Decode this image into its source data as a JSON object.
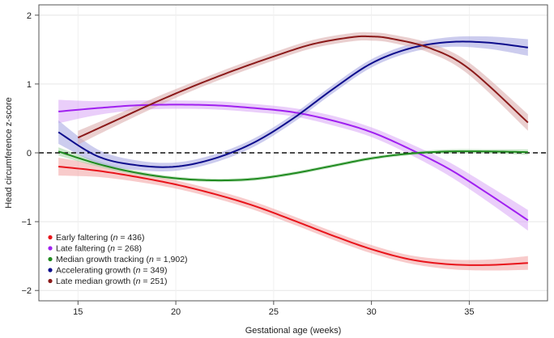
{
  "chart_data": {
    "type": "line",
    "xlabel": "Gestational age (weeks)",
    "ylabel": "Head circumference z-score",
    "xlim": [
      13,
      39
    ],
    "ylim": [
      -2.15,
      2.15
    ],
    "xticks": [
      15,
      20,
      25,
      30,
      35
    ],
    "yticks": [
      -2,
      -1,
      0,
      1,
      2
    ],
    "grid": true,
    "reference_line": {
      "y": 0,
      "style": "dashed"
    },
    "legend_position": "bottom-left",
    "series": [
      {
        "name": "Early faltering (n = 436)",
        "legend_prefix": "Early faltering (",
        "legend_n": "n",
        "legend_suffix": " = 436)",
        "color": "#e8141b",
        "band_color": "#f2a0a0",
        "x": [
          14,
          16,
          18,
          20,
          22,
          24,
          26,
          28,
          30,
          32,
          34,
          36,
          38
        ],
        "y": [
          -0.2,
          -0.26,
          -0.35,
          -0.46,
          -0.6,
          -0.77,
          -0.98,
          -1.2,
          -1.4,
          -1.55,
          -1.62,
          -1.63,
          -1.6
        ],
        "ci": [
          0.13,
          0.09,
          0.07,
          0.06,
          0.06,
          0.06,
          0.06,
          0.06,
          0.06,
          0.06,
          0.07,
          0.08,
          0.1
        ]
      },
      {
        "name": "Late faltering (n = 268)",
        "legend_prefix": "Late faltering (",
        "legend_n": "n",
        "legend_suffix": " = 268)",
        "color": "#a020f0",
        "band_color": "#d9a6f5",
        "x": [
          14,
          16,
          18,
          20,
          22,
          24,
          26,
          28,
          30,
          32,
          34,
          36,
          38
        ],
        "y": [
          0.6,
          0.65,
          0.69,
          0.7,
          0.69,
          0.65,
          0.59,
          0.47,
          0.3,
          0.05,
          -0.24,
          -0.6,
          -0.98
        ],
        "ci": [
          0.17,
          0.1,
          0.07,
          0.06,
          0.06,
          0.06,
          0.06,
          0.07,
          0.07,
          0.08,
          0.1,
          0.12,
          0.15
        ]
      },
      {
        "name": "Median growth tracking (n = 1,902)",
        "legend_prefix": "Median growth tracking (",
        "legend_n": "n",
        "legend_suffix": " = 1,902)",
        "color": "#1f8a1f",
        "band_color": "#9fd39f",
        "x": [
          14,
          16,
          18,
          20,
          22,
          24,
          26,
          28,
          30,
          32,
          34,
          36,
          38
        ],
        "y": [
          0.02,
          -0.16,
          -0.29,
          -0.37,
          -0.4,
          -0.38,
          -0.3,
          -0.19,
          -0.08,
          -0.01,
          0.02,
          0.02,
          0.01
        ],
        "ci": [
          0.06,
          0.04,
          0.03,
          0.025,
          0.025,
          0.025,
          0.025,
          0.025,
          0.025,
          0.025,
          0.03,
          0.03,
          0.04
        ]
      },
      {
        "name": "Accelerating growth (n = 349)",
        "legend_prefix": "Accelerating growth (",
        "legend_n": "n",
        "legend_suffix": " = 349)",
        "color": "#0d0d8c",
        "band_color": "#a3a3e0",
        "x": [
          14,
          16,
          18,
          20,
          22,
          24,
          26,
          28,
          30,
          32,
          34,
          36,
          38
        ],
        "y": [
          0.3,
          -0.05,
          -0.18,
          -0.2,
          -0.08,
          0.15,
          0.5,
          0.92,
          1.3,
          1.52,
          1.61,
          1.6,
          1.53
        ],
        "ci": [
          0.17,
          0.1,
          0.07,
          0.06,
          0.06,
          0.06,
          0.06,
          0.06,
          0.06,
          0.06,
          0.07,
          0.09,
          0.12
        ]
      },
      {
        "name": "Late median growth (n = 251)",
        "legend_prefix": "Late median growth (",
        "legend_n": "n",
        "legend_suffix": " = 251)",
        "color": "#8b1a1a",
        "band_color": "#d8a8a8",
        "x": [
          15,
          17,
          19,
          21,
          23,
          25,
          27,
          29,
          30,
          31,
          33,
          35,
          38
        ],
        "y": [
          0.22,
          0.48,
          0.74,
          0.98,
          1.2,
          1.4,
          1.58,
          1.68,
          1.69,
          1.66,
          1.52,
          1.22,
          0.44
        ],
        "ci": [
          0.1,
          0.08,
          0.07,
          0.06,
          0.06,
          0.06,
          0.06,
          0.06,
          0.06,
          0.06,
          0.07,
          0.09,
          0.12
        ]
      }
    ]
  }
}
